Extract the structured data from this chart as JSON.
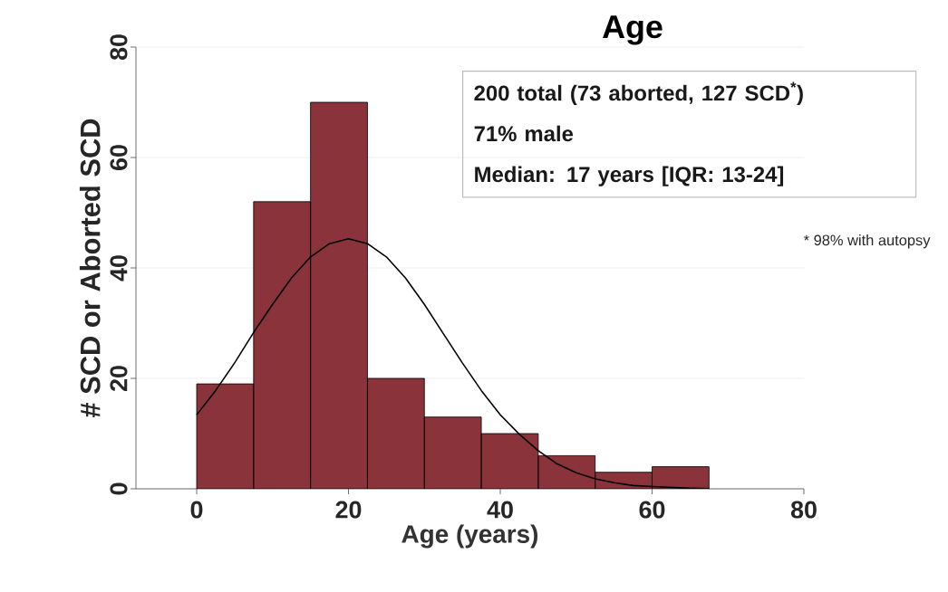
{
  "chart_data": {
    "type": "histogram",
    "title": "Age",
    "xlabel": "Age (years)",
    "ylabel": "# SCD or Aborted SCD",
    "bins": [
      0,
      7.5,
      15,
      22.5,
      30,
      37.5,
      45,
      52.5,
      60,
      67.5
    ],
    "values": [
      19,
      52,
      70,
      20,
      13,
      10,
      6,
      3,
      4
    ],
    "color": "#8b333b",
    "series": [
      {
        "type": "line",
        "color": "#000000",
        "x": [
          0,
          2.5,
          5,
          7.5,
          10,
          12.5,
          15,
          17.5,
          20,
          22.5,
          25,
          27.5,
          30,
          32.5,
          35,
          37.5,
          40,
          42.5,
          45,
          47.5,
          50,
          52.5,
          55,
          57.5,
          60,
          65,
          67.5
        ],
        "values": [
          13.4,
          17.8,
          22.8,
          28.3,
          33.4,
          38.2,
          42,
          44.4,
          45.3,
          44.4,
          42,
          38.2,
          33.4,
          28.1,
          22.8,
          17.8,
          13.4,
          9.9,
          6.9,
          4.5,
          2.9,
          1.8,
          1.1,
          0.6,
          0.4,
          0.1,
          0.05
        ]
      }
    ],
    "xlim": [
      -8,
      80
    ],
    "ylim": [
      0,
      80
    ],
    "xticks": [
      0,
      20,
      40,
      60,
      80
    ],
    "yticks": [
      0,
      20,
      40,
      60,
      80
    ],
    "grid": "y",
    "marker": "none",
    "line_style": "solid",
    "annotations": [
      "200 total (73 aborted, 127 SCD$^{*}$)",
      "71% male",
      "Median: 17 years [IQR: 13-24]",
      "* 98% with autopsy"
    ]
  }
}
